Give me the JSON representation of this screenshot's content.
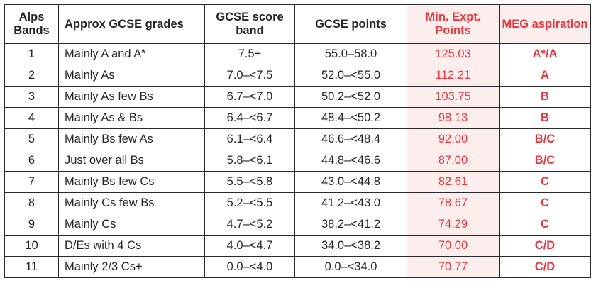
{
  "headers": {
    "band": "Alps Bands",
    "approx": "Approx GCSE grades",
    "score": "GCSE score band",
    "points": "GCSE points",
    "min": "Min. Expt. Points",
    "meg": "MEG aspiration"
  },
  "colors": {
    "accent_red": "#e8373f",
    "highlight_bg": "#fdeeee",
    "text": "#262626",
    "border": "#2a2a2a"
  },
  "rows": [
    {
      "band": "1",
      "approx": "Mainly A and A*",
      "score": "7.5+",
      "points": "55.0–58.0",
      "min": "125.03",
      "meg": "A*/A"
    },
    {
      "band": "2",
      "approx": "Mainly As",
      "score": "7.0–<7.5",
      "points": "52.0–<55.0",
      "min": "112.21",
      "meg": "A"
    },
    {
      "band": "3",
      "approx": "Mainly As few Bs",
      "score": "6.7–<7.0",
      "points": "50.2–<52.0",
      "min": "103.75",
      "meg": "B"
    },
    {
      "band": "4",
      "approx": "Mainly As & Bs",
      "score": "6.4–<6.7",
      "points": "48.4–<50.2",
      "min": "98.13",
      "meg": "B"
    },
    {
      "band": "5",
      "approx": "Mainly Bs few As",
      "score": "6.1–<6.4",
      "points": "46.6–<48.4",
      "min": "92.00",
      "meg": "B/C"
    },
    {
      "band": "6",
      "approx": "Just over all Bs",
      "score": "5.8–<6.1",
      "points": "44.8–<46.6",
      "min": "87.00",
      "meg": "B/C"
    },
    {
      "band": "7",
      "approx": "Mainly Bs few Cs",
      "score": "5.5–<5.8",
      "points": "43.0–<44.8",
      "min": "82.61",
      "meg": "C"
    },
    {
      "band": "8",
      "approx": "Mainly Cs few Bs",
      "score": "5.2–<5.5",
      "points": "41.2–<43.0",
      "min": "78.67",
      "meg": "C"
    },
    {
      "band": "9",
      "approx": "Mainly Cs",
      "score": "4.7–<5.2",
      "points": "38.2–<41.2",
      "min": "74.29",
      "meg": "C"
    },
    {
      "band": "10",
      "approx": "D/Es with 4 Cs",
      "score": "4.0–<4.7",
      "points": "34.0–<38.2",
      "min": "70.00",
      "meg": "C/D"
    },
    {
      "band": "11",
      "approx": "Mainly 2/3 Cs+",
      "score": "0.0–<4.0",
      "points": "0.0–<34.0",
      "min": "70.77",
      "meg": "C/D"
    }
  ]
}
